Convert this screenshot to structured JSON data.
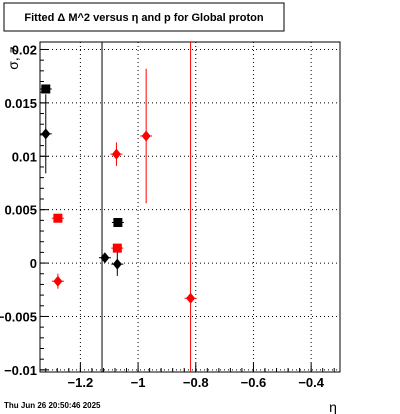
{
  "chart_data": {
    "type": "scatter",
    "title": "Fitted Δ M^2 versus η and p for Global proton",
    "xlabel": "η",
    "ylabel": "σ, z",
    "footer": "Thu Jun 26 20:50:46 2025",
    "xlim": [
      -1.34,
      -0.3
    ],
    "ylim": [
      -0.0102,
      0.0207
    ],
    "x_ticks": [
      -1.2,
      -1.0,
      -0.8,
      -0.6,
      -0.4
    ],
    "x_tick_labels": [
      "−1.2",
      "−1",
      "−0.8",
      "−0.6",
      "−0.4"
    ],
    "y_ticks": [
      -0.01,
      -0.005,
      0,
      0.005,
      0.01,
      0.015,
      0.02
    ],
    "y_tick_labels": [
      "−0.01",
      "−0.005",
      "0",
      "0.005",
      "0.01",
      "0.015",
      "0.02"
    ],
    "grid": true,
    "series": [
      {
        "color": "#000000",
        "marker": "square",
        "points": [
          {
            "x": -1.32,
            "y": 0.0163,
            "yerr": 0.0
          },
          {
            "x": -1.07,
            "y": 0.0038,
            "yerr": 0.0
          }
        ]
      },
      {
        "color": "#000000",
        "marker": "diamond",
        "points": [
          {
            "x": -1.32,
            "y": 0.0121,
            "yerr": 0.0037
          },
          {
            "x": -1.115,
            "y": 0.0005,
            "yerr": 0.0
          },
          {
            "x": -1.072,
            "y": -0.0001,
            "yerr": 0.0011
          }
        ]
      },
      {
        "color": "#ff0000",
        "marker": "square",
        "points": [
          {
            "x": -1.278,
            "y": 0.0042,
            "yerr": 0.0
          },
          {
            "x": -1.072,
            "y": 0.0014,
            "yerr": 0.0
          }
        ]
      },
      {
        "color": "#ff0000",
        "marker": "diamond",
        "points": [
          {
            "x": -1.278,
            "y": -0.0017,
            "yerr": 0.0007
          },
          {
            "x": -1.075,
            "y": 0.0102,
            "yerr": 0.0011
          },
          {
            "x": -0.972,
            "y": 0.0119,
            "yerr": 0.0063
          },
          {
            "x": -0.818,
            "y": -0.0033,
            "yerr": 0.0
          }
        ]
      }
    ],
    "vertical_lines": [
      {
        "x": -1.125,
        "color": "#000000"
      },
      {
        "x": -0.818,
        "color": "#ff0000"
      }
    ]
  }
}
